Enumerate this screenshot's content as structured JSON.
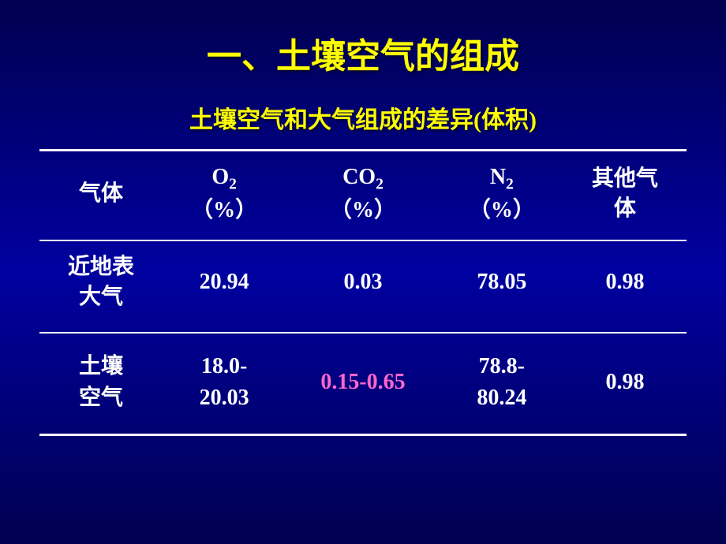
{
  "title": "一、土壤空气的组成",
  "subtitle": "土壤空气和大气组成的差异(体积)",
  "colors": {
    "title": "#ffff00",
    "subtitle": "#ffff00",
    "text": "#ffffff",
    "highlight": "#ff66cc",
    "border": "#ffffff",
    "bg_gradient_top": "#000050",
    "bg_gradient_mid": "#0000a0",
    "bg_gradient_bot": "#000050"
  },
  "typography": {
    "title_fontsize": 44,
    "subtitle_fontsize": 30,
    "cell_fontsize": 28,
    "title_family": "KaiTi",
    "body_family": "SimSun",
    "number_family": "Times New Roman"
  },
  "table": {
    "type": "table",
    "border_top_width": 3,
    "border_mid_width": 2,
    "border_bot_width": 3,
    "columns": [
      {
        "label": "气体"
      },
      {
        "base": "O",
        "sub": "2",
        "unit_prefix": "（",
        "unit": "%",
        "unit_suffix": "）"
      },
      {
        "base": "CO",
        "sub": "2",
        "unit_prefix": "（",
        "unit": "%",
        "unit_suffix": "）"
      },
      {
        "base": "N",
        "sub": "2",
        "unit_prefix": "（",
        "unit": "%",
        "unit_suffix": "）"
      },
      {
        "label_line1": "其他气",
        "label_line2": "体"
      }
    ],
    "rows": [
      {
        "label_line1": "近地表",
        "label_line2": "大气",
        "o2": "20.94",
        "co2": "0.03",
        "n2": "78.05",
        "other": "0.98",
        "co2_highlight": false
      },
      {
        "label_line1": "土壤",
        "label_line2": "空气",
        "o2_line1": "18.0-",
        "o2_line2": "20.03",
        "co2": "0.15-0.65",
        "n2_line1": "78.8-",
        "n2_line2": "80.24",
        "other": "0.98",
        "co2_highlight": true
      }
    ]
  }
}
